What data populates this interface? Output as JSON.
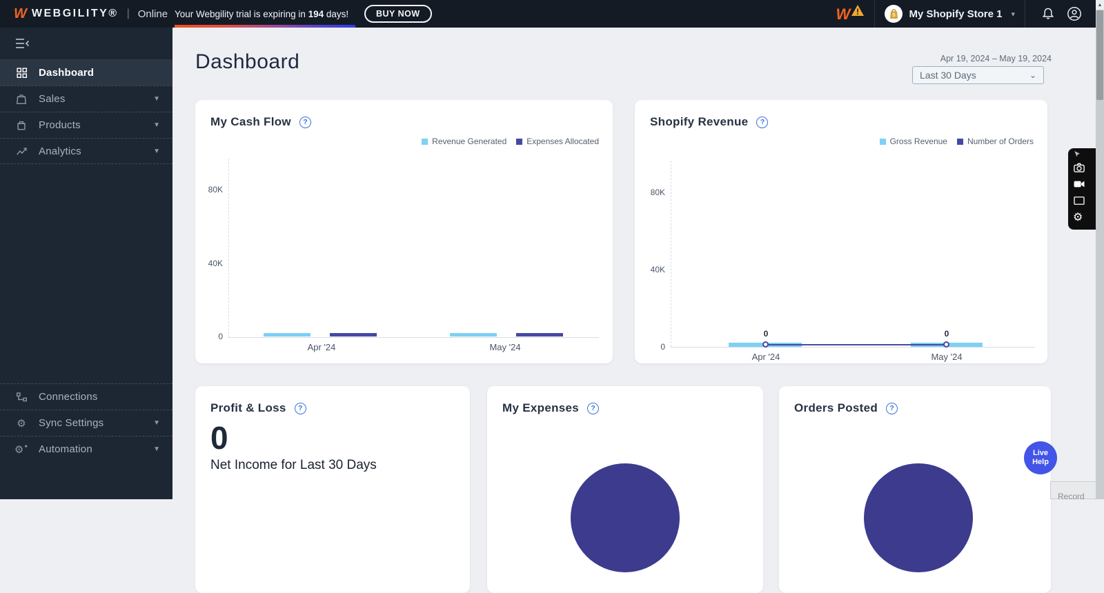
{
  "topbar": {
    "brand": "WEBGILITY®",
    "separator": "|",
    "product": "Online",
    "trial_message_prefix": "Your Webgility trial is expiring in ",
    "trial_days": "194",
    "trial_message_suffix": " days!",
    "buy_now_label": "BUY NOW",
    "store_selector": {
      "name": "My Shopify Store 1"
    }
  },
  "sidebar": {
    "items": [
      {
        "label": "Dashboard",
        "active": true,
        "expandable": false
      },
      {
        "label": "Sales",
        "active": false,
        "expandable": true
      },
      {
        "label": "Products",
        "active": false,
        "expandable": true
      },
      {
        "label": "Analytics",
        "active": false,
        "expandable": true
      },
      {
        "label": "Connections",
        "active": false,
        "expandable": false
      },
      {
        "label": "Sync Settings",
        "active": false,
        "expandable": true
      },
      {
        "label": "Automation",
        "active": false,
        "expandable": true
      }
    ]
  },
  "header": {
    "title": "Dashboard",
    "date_range": "Apr 19, 2024 – May 19, 2024",
    "range_selected": "Last 30 Days"
  },
  "profit_loss": {
    "title": "Profit & Loss",
    "value": "0",
    "caption": "Net Income for Last 30 Days"
  },
  "help_button": {
    "line1": "Live",
    "line2": "Help"
  },
  "record_widget": {
    "label": "Record"
  },
  "icons": {
    "collapse-menu-icon": "three lines with left chevron",
    "dashboard-grid-icon": "2x2 grid",
    "shopping-bag-icon": "bag",
    "product-box-icon": "box",
    "analytics-chart-icon": "zigzag trend arrow",
    "connections-icon": "node tree",
    "gear-icon": "⚙",
    "automation-gear-icon": "⚙",
    "bell-icon": "notification bell",
    "account-icon": "person in circle",
    "chevron-down-icon": "▾",
    "help-icon": "? in circle",
    "warning-icon": "⚠ triangle",
    "shopify-bag-icon": "gold shopping bag",
    "camera-icon": "photo camera",
    "video-camera-icon": "video camera",
    "screenshot-icon": "rectangle frame",
    "settings-gear-icon": "⚙",
    "scroll-up-icon": "▲",
    "record-caret-icon": "▼"
  },
  "colors": {
    "topbar_bg": "#141b25",
    "sidebar_bg": "#1d2734",
    "sidebar_active_bg": "#2b3645",
    "main_bg": "#edeff3",
    "accent_orange": "#f26322",
    "accent_blue": "#3b6fe0",
    "light_blue_series": "#7ed0f5",
    "indigo_series": "#4649a3",
    "pie_indigo": "#3c3b8d",
    "help_button_bg": "#4355e8",
    "trial_gradient": [
      "#f4511e",
      "#a04b96",
      "#2c3ee8"
    ]
  },
  "chart_data": [
    {
      "id": "my_cash_flow",
      "type": "bar",
      "title": "My Cash Flow",
      "categories": [
        "Apr '24",
        "May '24"
      ],
      "series": [
        {
          "name": "Revenue Generated",
          "color": "#7ed0f5",
          "values": [
            2000,
            2000
          ]
        },
        {
          "name": "Expenses Allocated",
          "color": "#4649a3",
          "values": [
            2000,
            2000
          ]
        }
      ],
      "ylabel": "",
      "xlabel": "",
      "ylim": [
        0,
        80000
      ],
      "yticks": [
        "0",
        "40K",
        "80K"
      ],
      "grid": false,
      "legend_position": "top-right"
    },
    {
      "id": "shopify_revenue",
      "type": "bar+line",
      "title": "Shopify Revenue",
      "categories": [
        "Apr '24",
        "May '24"
      ],
      "series": [
        {
          "name": "Gross Revenue",
          "type": "bar",
          "color": "#7ed0f5",
          "values": [
            2000,
            2000
          ]
        },
        {
          "name": "Number of Orders",
          "type": "line",
          "color": "#4649a3",
          "values": [
            0,
            0
          ],
          "point_labels": [
            "0",
            "0"
          ]
        }
      ],
      "ylabel": "",
      "xlabel": "",
      "ylim": [
        0,
        80000
      ],
      "yticks": [
        "0",
        "40K",
        "80K"
      ],
      "grid": false,
      "legend_position": "top-right"
    },
    {
      "id": "my_expenses",
      "type": "pie",
      "title": "My Expenses",
      "slices": [
        {
          "label": "",
          "value": 100,
          "color": "#3c3b8d"
        }
      ]
    },
    {
      "id": "orders_posted",
      "type": "pie",
      "title": "Orders Posted",
      "slices": [
        {
          "label": "",
          "value": 100,
          "color": "#3c3b8d"
        }
      ]
    }
  ]
}
